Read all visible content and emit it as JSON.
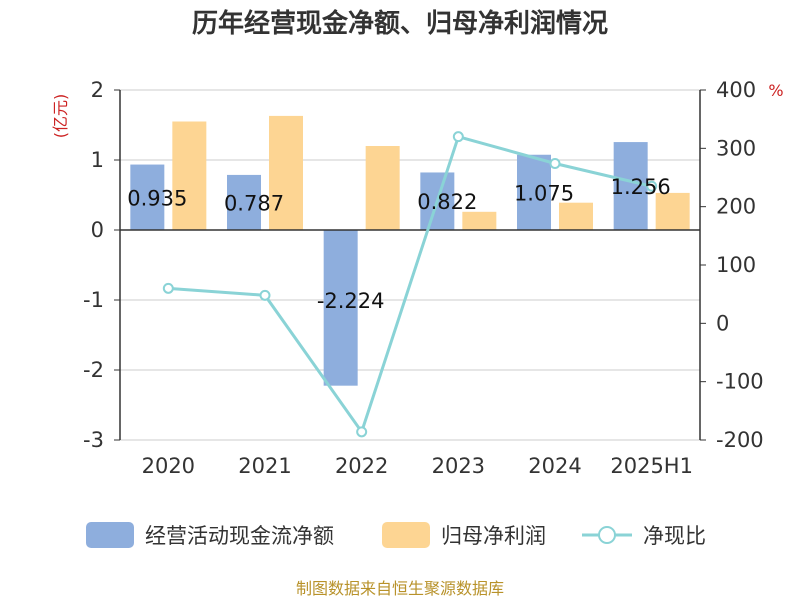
{
  "title": "历年经营现金净额、归母净利润情况",
  "footer": "制图数据来自恒生聚源数据库",
  "colors": {
    "cash_flow": "#8eaedd",
    "net_profit": "#fdd593",
    "ratio": "#8ad3d6",
    "unit": "#cc2222",
    "footer": "#b8922a",
    "grid": "#cccccc",
    "axis": "#333333"
  },
  "chart_data": {
    "type": "bar",
    "title": "历年经营现金净额、归母净利润情况",
    "categories": [
      "2020",
      "2021",
      "2022",
      "2023",
      "2024",
      "2025H1"
    ],
    "y_left": {
      "label": "(亿元)",
      "range": [
        -3,
        2
      ],
      "ticks": [
        2,
        1,
        0,
        -1,
        -2,
        -3
      ]
    },
    "y_right": {
      "label": "%",
      "range": [
        -200,
        400
      ],
      "ticks": [
        400,
        300,
        200,
        100,
        0,
        -100,
        -200
      ]
    },
    "series": [
      {
        "name": "经营活动现金流净额",
        "type": "bar",
        "axis": "left",
        "values": [
          0.935,
          0.787,
          -2.224,
          0.822,
          1.075,
          1.256
        ],
        "labels": [
          "0.935",
          "0.787",
          "-2.224",
          "0.822",
          "1.075",
          "1.256"
        ]
      },
      {
        "name": "归母净利润",
        "type": "bar",
        "axis": "left",
        "values": [
          1.55,
          1.63,
          1.2,
          0.26,
          0.39,
          0.53
        ]
      },
      {
        "name": "净现比",
        "type": "line",
        "axis": "right",
        "values": [
          60,
          48,
          -186,
          320,
          274,
          235
        ]
      }
    ],
    "legend": {
      "position": "bottom"
    },
    "grid": true
  }
}
